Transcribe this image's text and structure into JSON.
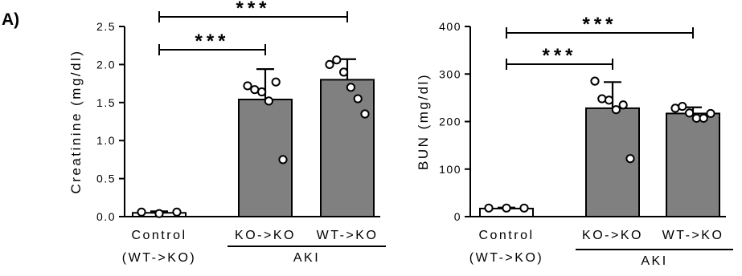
{
  "panel_label": "A)",
  "colors": {
    "control_bar": "#ffffff",
    "aki_bar": "#808080",
    "axis": "#000000"
  },
  "chart_data": [
    {
      "type": "bar",
      "ylabel": "Creatinine (mg/dl)",
      "ylim": [
        0,
        2.5
      ],
      "yticks": [
        0,
        0.5,
        1.0,
        1.5,
        2.0,
        2.5
      ],
      "ytick_labels": [
        "0.0",
        "0.5",
        "1.0",
        "1.5",
        "2.0",
        "2.5"
      ],
      "categories": [
        "Control",
        "KO->KO",
        "WT->KO"
      ],
      "category_sublabels": [
        "(WT->KO)",
        "",
        ""
      ],
      "group_label": "AKI",
      "values": [
        0.05,
        1.54,
        1.8
      ],
      "error_upper": [
        0.07,
        1.94,
        2.07
      ],
      "points": [
        [
          0.06,
          0.04,
          0.06
        ],
        [
          1.72,
          1.67,
          1.64,
          1.52,
          1.77,
          0.75
        ],
        [
          2.0,
          2.06,
          1.9,
          1.7,
          1.55,
          1.35
        ]
      ],
      "significance": [
        {
          "from": 0,
          "to": 1,
          "label": "***"
        },
        {
          "from": 0,
          "to": 2,
          "label": "***"
        }
      ]
    },
    {
      "type": "bar",
      "ylabel": "BUN (mg/dl)",
      "ylim": [
        0,
        400
      ],
      "yticks": [
        0,
        100,
        200,
        300,
        400
      ],
      "ytick_labels": [
        "0",
        "100",
        "200",
        "300",
        "400"
      ],
      "categories": [
        "Control",
        "KO->KO",
        "WT->KO"
      ],
      "category_sublabels": [
        "(WT->KO)",
        "",
        ""
      ],
      "group_label": "AKI",
      "values": [
        17,
        228,
        217
      ],
      "error_upper": [
        19,
        283,
        230
      ],
      "points": [
        [
          18,
          18,
          18
        ],
        [
          285,
          248,
          245,
          225,
          235,
          122
        ],
        [
          228,
          232,
          218,
          207,
          207,
          217
        ]
      ],
      "significance": [
        {
          "from": 0,
          "to": 1,
          "label": "***"
        },
        {
          "from": 0,
          "to": 2,
          "label": "***"
        }
      ]
    }
  ]
}
